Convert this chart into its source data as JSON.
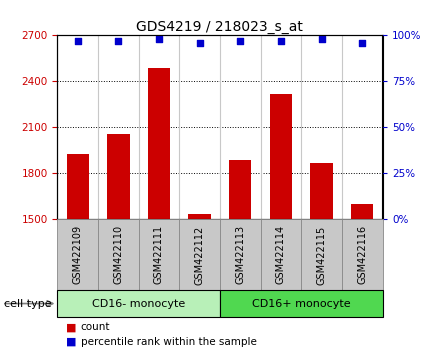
{
  "title": "GDS4219 / 218023_s_at",
  "samples": [
    "GSM422109",
    "GSM422110",
    "GSM422111",
    "GSM422112",
    "GSM422113",
    "GSM422114",
    "GSM422115",
    "GSM422116"
  ],
  "counts": [
    1930,
    2060,
    2490,
    1535,
    1890,
    2320,
    1870,
    1600
  ],
  "percentiles": [
    97,
    97,
    98,
    96,
    97,
    97,
    98,
    96
  ],
  "ylim_left": [
    1500,
    2700
  ],
  "ylim_right": [
    0,
    100
  ],
  "yticks_left": [
    1500,
    1800,
    2100,
    2400,
    2700
  ],
  "yticks_right": [
    0,
    25,
    50,
    75,
    100
  ],
  "groups": [
    {
      "label": "CD16- monocyte",
      "indices": [
        0,
        1,
        2,
        3
      ],
      "color": "#b8f0b8"
    },
    {
      "label": "CD16+ monocyte",
      "indices": [
        4,
        5,
        6,
        7
      ],
      "color": "#50d850"
    }
  ],
  "bar_color": "#cc0000",
  "dot_color": "#0000cc",
  "bar_width": 0.55,
  "group_label": "cell type",
  "legend_count_label": "count",
  "legend_pct_label": "percentile rank within the sample",
  "title_fontsize": 10,
  "tick_fontsize": 7.5,
  "sample_label_fontsize": 7,
  "group_label_fontsize": 8,
  "box_color": "#c8c8c8",
  "box_edge_color": "#888888"
}
